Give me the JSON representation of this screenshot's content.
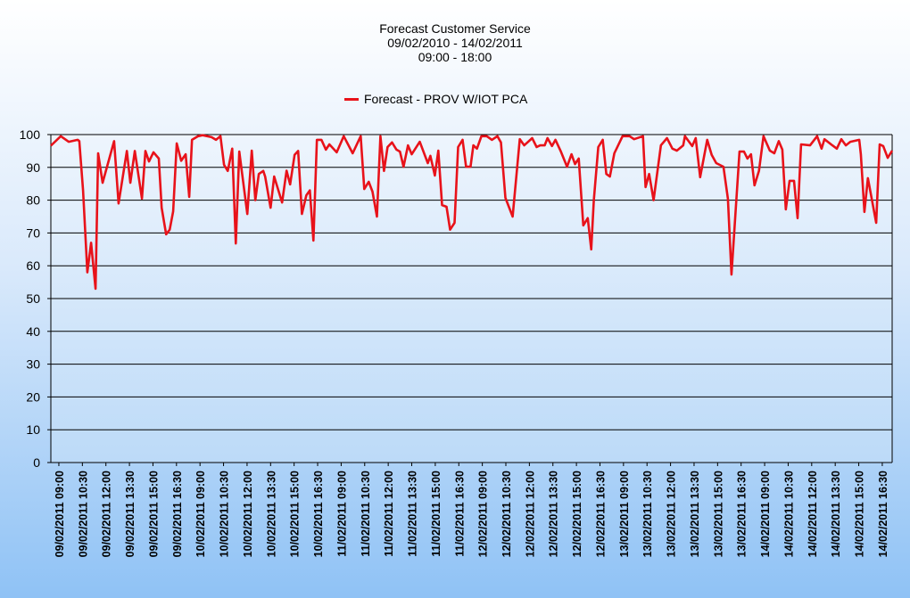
{
  "chart_data": {
    "type": "line",
    "title": "Forecast Customer Service",
    "subtitle_lines": [
      "09/02/2010  - 14/02/2011",
      "09:00 - 18:00"
    ],
    "xlabel": "",
    "ylabel": "",
    "ylim": [
      0,
      100
    ],
    "yticks": [
      0,
      10,
      20,
      30,
      40,
      50,
      60,
      70,
      80,
      90,
      100
    ],
    "grid": true,
    "legend_position": "top-center",
    "x_note": "x values are positions in category-label units (0 = first tick label)",
    "xlim": [
      -0.34,
      35.42
    ],
    "categories": [
      "09/02/2011  09:00",
      "09/02/2011  10:30",
      "09/02/2011  12:00",
      "09/02/2011  13:30",
      "09/02/2011  15:00",
      "09/02/2011  16:30",
      "10/02/2011  09:00",
      "10/02/2011  10:30",
      "10/02/2011  12:00",
      "10/02/2011  13:30",
      "10/02/2011  15:00",
      "10/02/2011  16:30",
      "11/02/2011  09:00",
      "11/02/2011  10:30",
      "11/02/2011  12:00",
      "11/02/2011  13:30",
      "11/02/2011  15:00",
      "11/02/2011  16:30",
      "12/02/2011  09:00",
      "12/02/2011  10:30",
      "12/02/2011  12:00",
      "12/02/2011  13:30",
      "12/02/2011  15:00",
      "12/02/2011  16:30",
      "13/02/2011  09:00",
      "13/02/2011  10:30",
      "13/02/2011  12:00",
      "13/02/2011  13:30",
      "13/02/2011  15:00",
      "13/02/2011  16:30",
      "14/02/2011  09:00",
      "14/02/2011  10:30",
      "14/02/2011  12:00",
      "14/02/2011  13:30",
      "14/02/2011  15:00",
      "14/02/2011  16:30"
    ],
    "series": [
      {
        "name": "Forecast  - PROV W/IOT PCA",
        "color": "#e8121a",
        "points": [
          [
            -0.34,
            96.6
          ],
          [
            0.08,
            99.5
          ],
          [
            0.42,
            97.8
          ],
          [
            0.8,
            98.4
          ],
          [
            0.87,
            98
          ],
          [
            1.03,
            83
          ],
          [
            1.21,
            58
          ],
          [
            1.37,
            67
          ],
          [
            1.56,
            53
          ],
          [
            1.67,
            94.3
          ],
          [
            1.86,
            85.3
          ],
          [
            2.35,
            98
          ],
          [
            2.54,
            79
          ],
          [
            2.89,
            95
          ],
          [
            3.04,
            85.3
          ],
          [
            3.23,
            95
          ],
          [
            3.53,
            80.5
          ],
          [
            3.68,
            95
          ],
          [
            3.83,
            91.8
          ],
          [
            4.02,
            94.6
          ],
          [
            4.25,
            92.7
          ],
          [
            4.37,
            77.7
          ],
          [
            4.56,
            69.6
          ],
          [
            4.71,
            71
          ],
          [
            4.86,
            76.6
          ],
          [
            5.01,
            97.3
          ],
          [
            5.2,
            92
          ],
          [
            5.39,
            94
          ],
          [
            5.54,
            81
          ],
          [
            5.66,
            98.4
          ],
          [
            5.92,
            99.5
          ],
          [
            6.11,
            99.8
          ],
          [
            6.49,
            99.2
          ],
          [
            6.68,
            98.4
          ],
          [
            6.87,
            99.5
          ],
          [
            7.02,
            90.8
          ],
          [
            7.18,
            88.9
          ],
          [
            7.37,
            95.7
          ],
          [
            7.52,
            66.8
          ],
          [
            7.67,
            94.8
          ],
          [
            8.01,
            75.8
          ],
          [
            8.2,
            95.1
          ],
          [
            8.35,
            80
          ],
          [
            8.5,
            88
          ],
          [
            8.69,
            88.9
          ],
          [
            8.77,
            87.2
          ],
          [
            9.0,
            77.7
          ],
          [
            9.15,
            87.2
          ],
          [
            9.49,
            79.3
          ],
          [
            9.68,
            89
          ],
          [
            9.83,
            84.8
          ],
          [
            10.02,
            93.8
          ],
          [
            10.17,
            95
          ],
          [
            10.33,
            75.8
          ],
          [
            10.52,
            81.5
          ],
          [
            10.67,
            83
          ],
          [
            10.82,
            67.7
          ],
          [
            10.97,
            98.4
          ],
          [
            11.16,
            98.4
          ],
          [
            11.35,
            95.4
          ],
          [
            11.5,
            97
          ],
          [
            11.81,
            94.6
          ],
          [
            12.11,
            99.5
          ],
          [
            12.49,
            94.3
          ],
          [
            12.83,
            99.5
          ],
          [
            12.98,
            83.4
          ],
          [
            13.17,
            85.6
          ],
          [
            13.33,
            82.6
          ],
          [
            13.52,
            75
          ],
          [
            13.67,
            99.5
          ],
          [
            13.82,
            88.9
          ],
          [
            13.97,
            96.2
          ],
          [
            14.16,
            97.6
          ],
          [
            14.35,
            95.4
          ],
          [
            14.5,
            94.8
          ],
          [
            14.65,
            90.2
          ],
          [
            14.84,
            96.7
          ],
          [
            15.0,
            94
          ],
          [
            15.34,
            97.8
          ],
          [
            15.68,
            91.3
          ],
          [
            15.79,
            93.5
          ],
          [
            15.98,
            87.5
          ],
          [
            16.13,
            95.1
          ],
          [
            16.29,
            78.5
          ],
          [
            16.48,
            78
          ],
          [
            16.63,
            71
          ],
          [
            16.82,
            73.1
          ],
          [
            16.97,
            96.2
          ],
          [
            17.16,
            98.4
          ],
          [
            17.31,
            90.2
          ],
          [
            17.5,
            90.2
          ],
          [
            17.62,
            96.7
          ],
          [
            17.77,
            95.7
          ],
          [
            17.96,
            99.5
          ],
          [
            18.19,
            99.5
          ],
          [
            18.41,
            98.4
          ],
          [
            18.64,
            99.5
          ],
          [
            18.79,
            97.6
          ],
          [
            18.98,
            80.7
          ],
          [
            19.29,
            75
          ],
          [
            19.59,
            98.6
          ],
          [
            19.78,
            96.7
          ],
          [
            20.12,
            98.9
          ],
          [
            20.31,
            96.2
          ],
          [
            20.46,
            96.7
          ],
          [
            20.65,
            96.7
          ],
          [
            20.77,
            98.9
          ],
          [
            20.96,
            96.5
          ],
          [
            21.11,
            98.4
          ],
          [
            21.34,
            94.8
          ],
          [
            21.6,
            90.2
          ],
          [
            21.79,
            94
          ],
          [
            21.94,
            91
          ],
          [
            22.1,
            92.7
          ],
          [
            22.29,
            72.3
          ],
          [
            22.48,
            74.5
          ],
          [
            22.63,
            65
          ],
          [
            22.74,
            80
          ],
          [
            22.93,
            96.2
          ],
          [
            23.12,
            98.4
          ],
          [
            23.27,
            88
          ],
          [
            23.42,
            87.2
          ],
          [
            23.61,
            94.3
          ],
          [
            23.96,
            99.5
          ],
          [
            24.26,
            99.5
          ],
          [
            24.45,
            98.6
          ],
          [
            24.83,
            99.5
          ],
          [
            24.94,
            84
          ],
          [
            25.09,
            88
          ],
          [
            25.28,
            80
          ],
          [
            25.59,
            96.7
          ],
          [
            25.85,
            98.9
          ],
          [
            26.08,
            95.7
          ],
          [
            26.27,
            95.1
          ],
          [
            26.54,
            96.7
          ],
          [
            26.61,
            99.5
          ],
          [
            26.92,
            96.5
          ],
          [
            27.07,
            98.9
          ],
          [
            27.26,
            87
          ],
          [
            27.56,
            98.4
          ],
          [
            27.75,
            93.8
          ],
          [
            27.94,
            91.3
          ],
          [
            28.25,
            90.2
          ],
          [
            28.44,
            80.4
          ],
          [
            28.59,
            57.3
          ],
          [
            28.93,
            94.8
          ],
          [
            29.12,
            94.8
          ],
          [
            29.27,
            92.7
          ],
          [
            29.42,
            94
          ],
          [
            29.57,
            84.5
          ],
          [
            29.76,
            88.9
          ],
          [
            29.95,
            99.5
          ],
          [
            30.22,
            95.1
          ],
          [
            30.41,
            94.3
          ],
          [
            30.6,
            98
          ],
          [
            30.75,
            95.4
          ],
          [
            30.9,
            77.2
          ],
          [
            31.06,
            85.9
          ],
          [
            31.25,
            85.9
          ],
          [
            31.4,
            74.5
          ],
          [
            31.55,
            97
          ],
          [
            31.93,
            96.7
          ],
          [
            32.23,
            99.5
          ],
          [
            32.42,
            95.7
          ],
          [
            32.54,
            98.6
          ],
          [
            32.88,
            96.7
          ],
          [
            33.07,
            95.7
          ],
          [
            33.26,
            98.6
          ],
          [
            33.45,
            96.7
          ],
          [
            33.64,
            97.8
          ],
          [
            34.02,
            98.4
          ],
          [
            34.09,
            94
          ],
          [
            34.24,
            76.4
          ],
          [
            34.39,
            86.7
          ],
          [
            34.74,
            73.1
          ],
          [
            34.89,
            97
          ],
          [
            35.04,
            96.5
          ],
          [
            35.23,
            92.9
          ],
          [
            35.42,
            95.1
          ]
        ]
      }
    ]
  }
}
